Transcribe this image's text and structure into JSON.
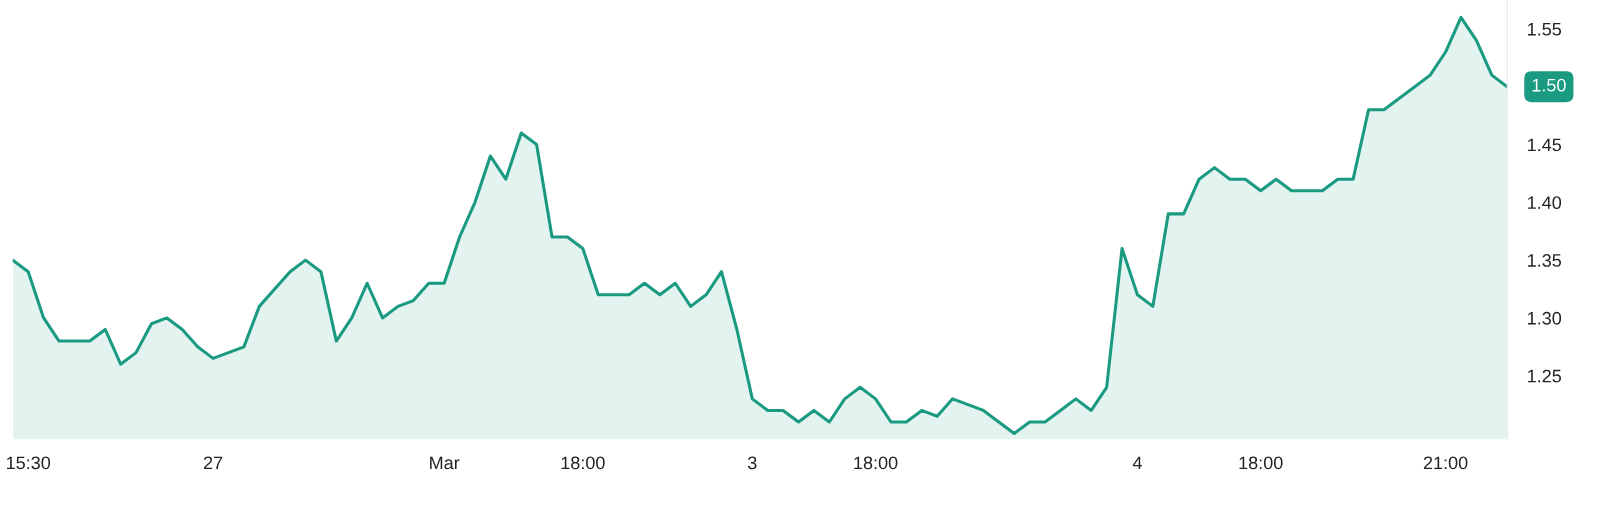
{
  "chart_data": {
    "type": "area",
    "categories": [
      null,
      "15:30",
      null,
      null,
      null,
      null,
      null,
      null,
      null,
      null,
      null,
      null,
      null,
      "27",
      null,
      null,
      null,
      null,
      null,
      null,
      null,
      null,
      null,
      null,
      null,
      null,
      null,
      null,
      "Mar",
      null,
      null,
      null,
      null,
      null,
      null,
      null,
      null,
      "18:00",
      null,
      null,
      null,
      null,
      null,
      null,
      null,
      null,
      null,
      null,
      "3",
      null,
      null,
      null,
      null,
      null,
      null,
      null,
      "18:00",
      null,
      null,
      null,
      null,
      null,
      null,
      null,
      null,
      null,
      null,
      null,
      null,
      null,
      null,
      null,
      null,
      "4",
      null,
      null,
      null,
      null,
      null,
      null,
      null,
      "18:00",
      null,
      null,
      null,
      null,
      null,
      null,
      null,
      null,
      null,
      null,
      null,
      "21:00",
      null,
      null,
      null,
      null
    ],
    "series": [
      {
        "color": "#1a9a80",
        "values": [
          1.35,
          1.34,
          1.3,
          1.28,
          1.28,
          1.28,
          1.29,
          1.26,
          1.27,
          1.295,
          1.3,
          1.29,
          1.275,
          1.265,
          1.27,
          1.275,
          1.31,
          1.325,
          1.34,
          1.35,
          1.34,
          1.28,
          1.3,
          1.33,
          1.3,
          1.31,
          1.315,
          1.33,
          1.33,
          1.37,
          1.4,
          1.44,
          1.42,
          1.46,
          1.45,
          1.37,
          1.37,
          1.36,
          1.32,
          1.32,
          1.32,
          1.33,
          1.32,
          1.33,
          1.31,
          1.32,
          1.34,
          1.29,
          1.23,
          1.22,
          1.22,
          1.21,
          1.22,
          1.21,
          1.23,
          1.24,
          1.23,
          1.21,
          1.21,
          1.22,
          1.215,
          1.23,
          1.225,
          1.22,
          1.21,
          1.2,
          1.21,
          1.21,
          1.22,
          1.23,
          1.22,
          1.24,
          1.36,
          1.32,
          1.31,
          1.39,
          1.39,
          1.42,
          1.43,
          1.42,
          1.42,
          1.41,
          1.42,
          1.41,
          1.41,
          1.41,
          1.42,
          1.42,
          1.48,
          1.48,
          1.49,
          1.5,
          1.51,
          1.53,
          1.56,
          1.54,
          1.51,
          1.5
        ]
      }
    ],
    "ylim": [
      1.195,
      1.575
    ],
    "yticks": [
      1.25,
      {
        "value": 1.3,
        "label": "1.30"
      },
      1.35,
      {
        "value": 1.4,
        "label": "1.40"
      },
      1.45,
      1.55
    ],
    "annotations": [
      "1.50"
    ],
    "grid": false,
    "legend": false
  }
}
